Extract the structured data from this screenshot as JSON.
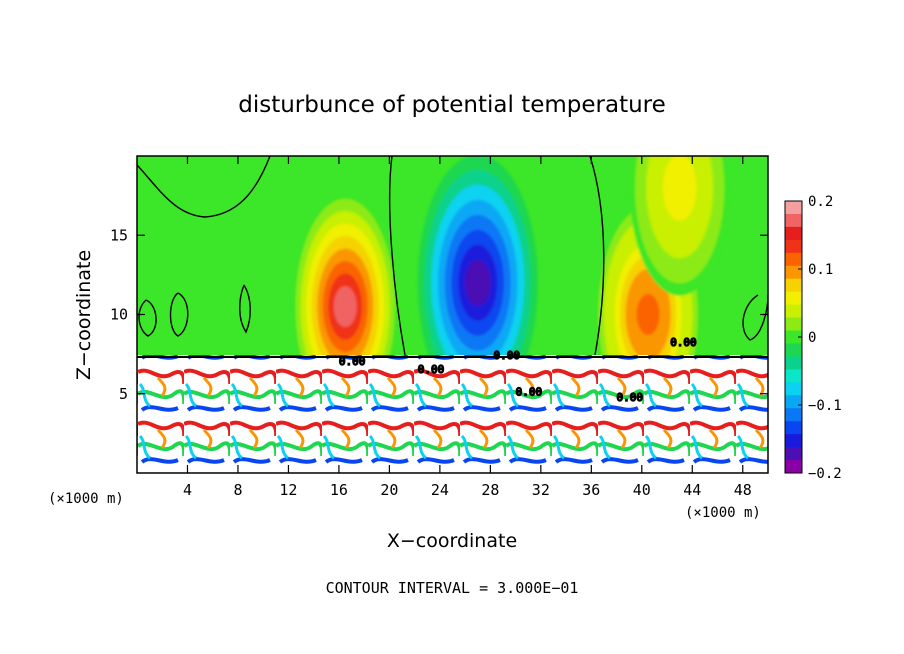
{
  "chart_data": {
    "type": "heatmap",
    "title": "disturbunce of potential temperature",
    "xlabel": "X−coordinate",
    "ylabel": "Z−coordinate",
    "x_unit": "(×1000 m)",
    "x_unit_right": "(×1000 m)",
    "xlim": [
      0,
      50
    ],
    "ylim": [
      0,
      20
    ],
    "x_ticks": [
      4,
      8,
      12,
      16,
      20,
      24,
      28,
      32,
      36,
      40,
      44,
      48
    ],
    "y_ticks": [
      5,
      10,
      15
    ],
    "colorbar": {
      "vmin": -0.2,
      "vmax": 0.2,
      "ticks": [
        0.2,
        0.1,
        0,
        -0.1,
        -0.2
      ],
      "tick_labels": [
        "0.2",
        "0.1",
        "0",
        "−0.1",
        "−0.2"
      ],
      "colors": [
        "#8b00a6",
        "#4b0fb4",
        "#1a1adc",
        "#0a46f0",
        "#0a78f5",
        "#08a8f5",
        "#0ad2f0",
        "#0ae6c8",
        "#0ad28c",
        "#1ed750",
        "#3ce628",
        "#8ceb14",
        "#c8f000",
        "#f0f000",
        "#f5d200",
        "#fa9600",
        "#fa6400",
        "#f03218",
        "#e61e1e",
        "#f06464",
        "#f5a0a0"
      ]
    },
    "features": [
      {
        "kind": "warm",
        "x": 16.5,
        "z": 10.5,
        "value": 0.17
      },
      {
        "kind": "cold",
        "x": 27.0,
        "z": 12.0,
        "value": -0.19
      },
      {
        "kind": "warm",
        "x": 40.5,
        "z": 10.0,
        "value": 0.12
      },
      {
        "kind": "warm",
        "x": 43.0,
        "z": 18.0,
        "value": 0.06
      }
    ],
    "footer": "CONTOUR INTERVAL = 3.000E−01",
    "contour_labels": [
      "0.00"
    ]
  }
}
